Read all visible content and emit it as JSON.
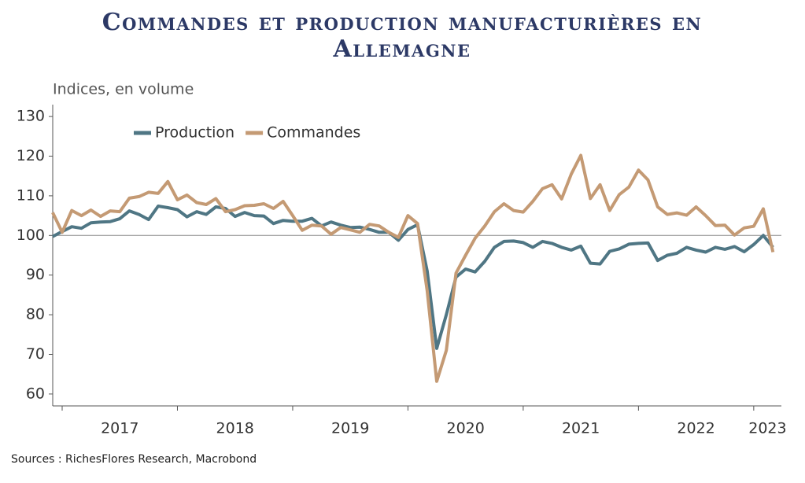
{
  "chart_data": {
    "type": "line",
    "title": "Commandes et production manufacturières en Allemagne",
    "y_label": "Indices, en volume",
    "source": "Sources : RichesFlores Research, Macrobond",
    "x": [
      2016.917,
      2017.0,
      2017.083,
      2017.167,
      2017.25,
      2017.333,
      2017.417,
      2017.5,
      2017.583,
      2017.667,
      2017.75,
      2017.833,
      2017.917,
      2018.0,
      2018.083,
      2018.167,
      2018.25,
      2018.333,
      2018.417,
      2018.5,
      2018.583,
      2018.667,
      2018.75,
      2018.833,
      2018.917,
      2019.0,
      2019.083,
      2019.167,
      2019.25,
      2019.333,
      2019.417,
      2019.5,
      2019.583,
      2019.667,
      2019.75,
      2019.833,
      2019.917,
      2020.0,
      2020.083,
      2020.167,
      2020.25,
      2020.333,
      2020.417,
      2020.5,
      2020.583,
      2020.667,
      2020.75,
      2020.833,
      2020.917,
      2021.0,
      2021.083,
      2021.167,
      2021.25,
      2021.333,
      2021.417,
      2021.5,
      2021.583,
      2021.667,
      2021.75,
      2021.833,
      2021.917,
      2022.0,
      2022.083,
      2022.167,
      2022.25,
      2022.333,
      2022.417,
      2022.5,
      2022.583,
      2022.667,
      2022.75,
      2022.833,
      2022.917,
      2023.0,
      2023.083,
      2023.167
    ],
    "series": [
      {
        "name": "Production",
        "color": "#4f7684",
        "values": [
          99.7,
          101,
          102.2,
          101.8,
          103.2,
          103.4,
          103.5,
          104.2,
          106.2,
          105.3,
          104,
          107.4,
          107,
          106.5,
          104.7,
          106,
          105.3,
          107.2,
          106.8,
          104.8,
          105.8,
          105,
          104.9,
          103,
          103.8,
          103.6,
          103.6,
          104.3,
          102.4,
          103.4,
          102.6,
          102,
          102.1,
          101.5,
          100.8,
          100.8,
          98.8,
          101.5,
          102.7,
          91,
          71.5,
          80,
          89.5,
          91.5,
          90.8,
          93.5,
          97,
          98.5,
          98.6,
          98.2,
          97,
          98.5,
          98,
          97,
          96.3,
          97.3,
          93,
          92.8,
          96,
          96.6,
          97.8,
          98,
          98.1,
          93.7,
          95,
          95.5,
          97,
          96.3,
          95.8,
          97,
          96.5,
          97.2,
          95.9,
          97.7,
          100,
          97
        ]
      },
      {
        "name": "Commandes",
        "color": "#c49a74",
        "values": [
          105.8,
          100.8,
          106.3,
          105,
          106.4,
          104.8,
          106.2,
          106,
          109.4,
          109.8,
          110.9,
          110.6,
          113.6,
          109,
          110.2,
          108.3,
          107.8,
          109.3,
          106,
          106.5,
          107.5,
          107.6,
          108,
          106.8,
          108.6,
          105,
          101.3,
          102.6,
          102.4,
          100.3,
          102,
          101.4,
          100.8,
          102.8,
          102.4,
          100.8,
          99.5,
          105,
          103,
          86,
          63.2,
          71,
          90.5,
          95,
          99.3,
          102.4,
          106,
          108,
          106.3,
          105.9,
          108.6,
          111.8,
          112.8,
          109.2,
          115.5,
          120.2,
          109.3,
          112.8,
          106.3,
          110.3,
          112.2,
          116.5,
          114,
          107.2,
          105.3,
          105.7,
          105.1,
          107.2,
          105,
          102.5,
          102.6,
          100.1,
          101.9,
          102.3,
          106.7,
          95.8
        ]
      }
    ],
    "xlim": [
      2016.918,
      2023.24
    ],
    "xticks": [
      2017,
      2018,
      2019,
      2020,
      2021,
      2022,
      2023
    ],
    "ylim": [
      57,
      133
    ],
    "yticks": [
      60,
      70,
      80,
      90,
      100,
      110,
      120,
      130
    ],
    "hline": 100,
    "legend": "top-left"
  }
}
